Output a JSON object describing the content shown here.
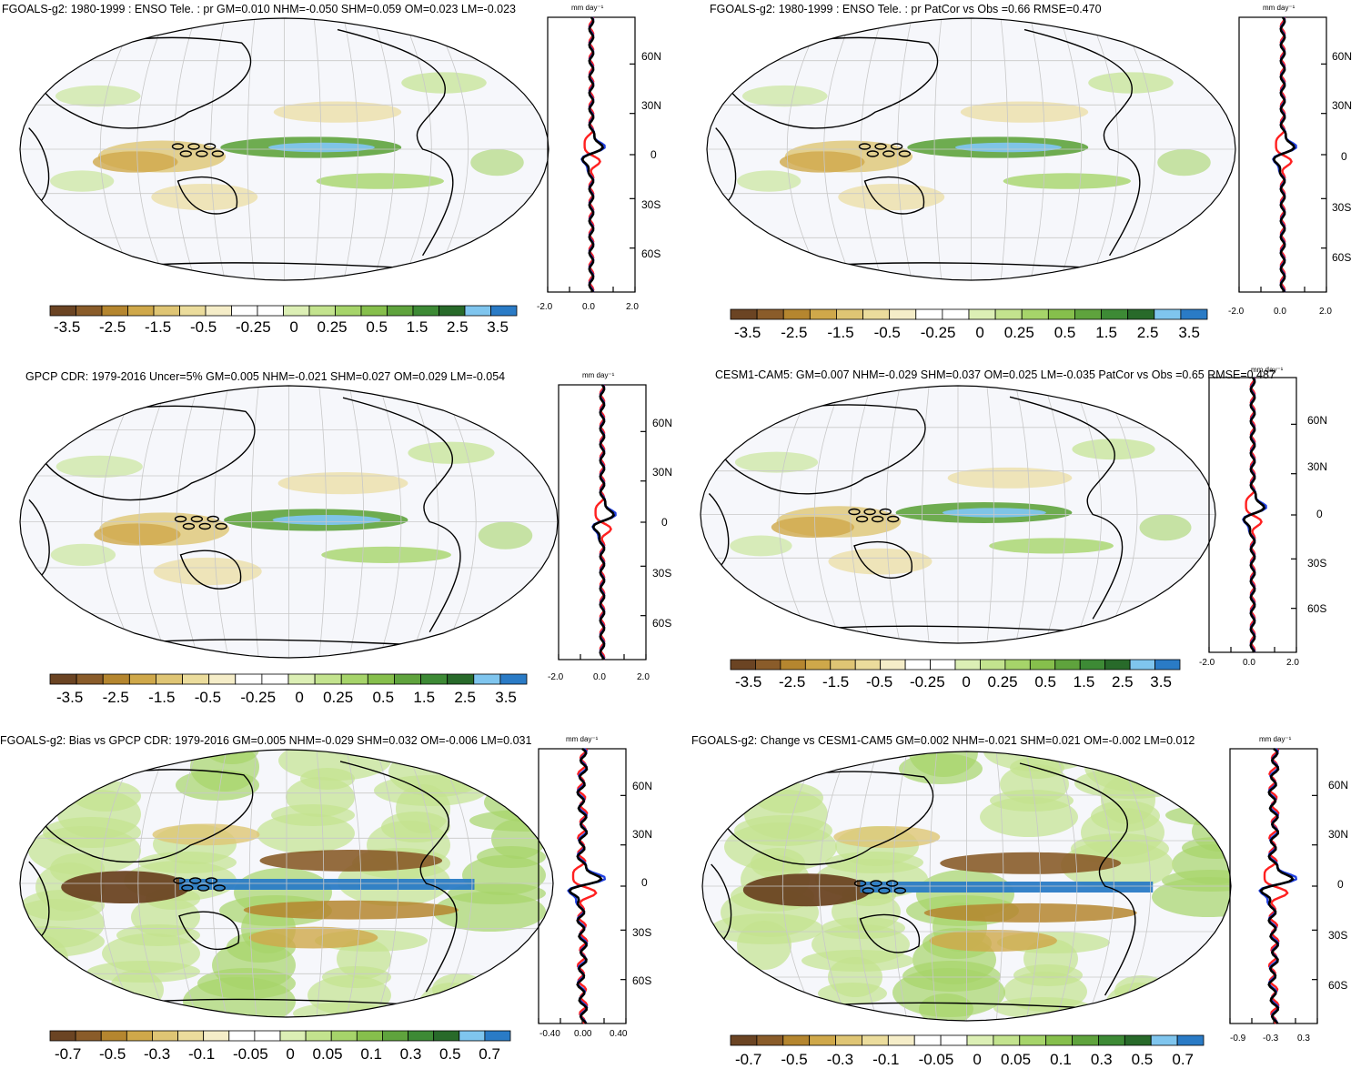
{
  "units_label": "mm day⁻¹",
  "lat_ticks": [
    "60N",
    "30N",
    "0",
    "30S",
    "60S"
  ],
  "colorbar_std": [
    "-3.5",
    "-2.5",
    "-1.5",
    "-0.5",
    "-0.25",
    "0",
    "0.25",
    "0.5",
    "1.5",
    "2.5",
    "3.5"
  ],
  "colorbar_bias": [
    "-0.7",
    "-0.5",
    "-0.3",
    "-0.1",
    "-0.05",
    "0",
    "0.05",
    "0.1",
    "0.3",
    "0.5",
    "0.7"
  ],
  "colors": {
    "palette": [
      "#6b4423",
      "#8a5c2a",
      "#b5862f",
      "#cfa84a",
      "#dfc574",
      "#ebdc9c",
      "#f5edc8",
      "#ffffff",
      "#ffffff",
      "#dcefb5",
      "#c3e38e",
      "#a6d46a",
      "#86bf4c",
      "#5fa33d",
      "#3d8a35",
      "#286a2a",
      "#7fc5ee",
      "#2a7bc6"
    ],
    "land_outline": "#000000",
    "ocean_bg": "#f6f7fb",
    "obs_line": "#000000",
    "model_line_red": "#ff2020",
    "model_line_blue": "#1f3fe0"
  },
  "panels": [
    {
      "title": "FGOALS-g2: 1980-1999 : ENSO Tele. : pr GM=0.010 NHM=-0.050 SHM=0.059 OM=0.023 LM=-0.023",
      "xticks": [
        "-2.0",
        "0.0",
        "2.0"
      ],
      "colorbar": "std"
    },
    {
      "title": "FGOALS-g2: 1980-1999 : ENSO Tele. : pr PatCor vs Obs =0.66 RMSE=0.470",
      "xticks": [
        "-2.0",
        "0.0",
        "2.0"
      ],
      "colorbar": "std"
    },
    {
      "title": "GPCP CDR: 1979-2016 Uncer=5% GM=0.005 NHM=-0.021 SHM=0.027 OM=0.029 LM=-0.054",
      "xticks": [
        "-2.0",
        "0.0",
        "2.0"
      ],
      "colorbar": "std"
    },
    {
      "title": "CESM1-CAM5: GM=0.007 NHM=-0.029 SHM=0.037 OM=0.025 LM=-0.035 PatCor vs Obs =0.65 RMSE=0.487",
      "xticks": [
        "-2.0",
        "0.0",
        "2.0"
      ],
      "colorbar": "std"
    },
    {
      "title": "FGOALS-g2: Bias vs GPCP CDR: 1979-2016 GM=0.005 NHM=-0.029 SHM=0.032 OM=-0.006 LM=0.031",
      "xticks": [
        "-0.40",
        "0.00",
        "0.40"
      ],
      "colorbar": "bias"
    },
    {
      "title": "FGOALS-g2: Change vs CESM1-CAM5 GM=0.002 NHM=-0.021 SHM=0.021 OM=-0.002 LM=0.012",
      "xticks": [
        "-0.9",
        "-0.3",
        "0.3"
      ],
      "colorbar": "bias"
    }
  ]
}
